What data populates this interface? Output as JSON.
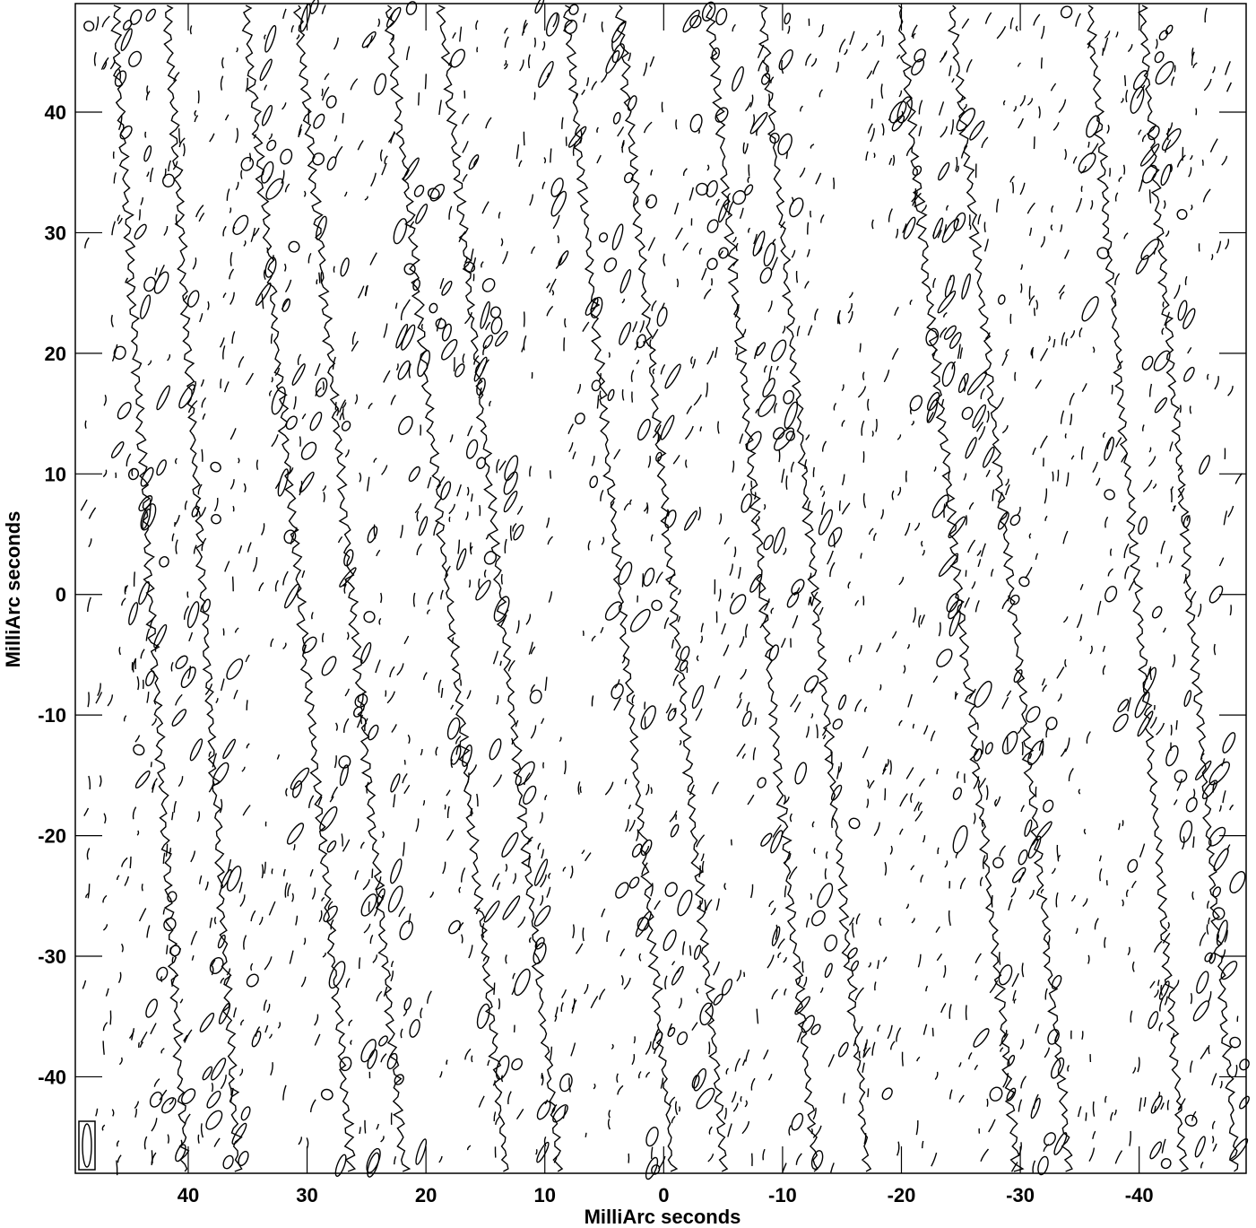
{
  "chart_data": {
    "type": "contour",
    "title": "",
    "xlabel": "MilliArc seconds",
    "ylabel": "MilliArc seconds",
    "xlim": [
      49.5,
      -49
    ],
    "ylim": [
      -48,
      49
    ],
    "x_ticks": [
      40,
      30,
      20,
      10,
      0,
      -10,
      -20,
      -30,
      -40
    ],
    "x_tick_labels": [
      "40",
      "30",
      "20",
      "10",
      "0",
      "-10",
      "-20",
      "-30",
      "-40"
    ],
    "y_ticks": [
      40,
      30,
      20,
      10,
      0,
      -10,
      -20,
      -30,
      -40
    ],
    "y_tick_labels": [
      "40",
      "30",
      "20",
      "10",
      "0",
      "-10",
      "-20",
      "-30",
      "-40"
    ],
    "grid": false,
    "legend": "none",
    "colors": {
      "ink": "#000000",
      "background": "#ffffff"
    },
    "features": {
      "diagonal_bands": [
        {
          "x_top": 44,
          "x_bottom": 38
        },
        {
          "x_top": 33,
          "x_bottom": 24
        },
        {
          "x_top": 21,
          "x_bottom": 11
        },
        {
          "x_top": 6,
          "x_bottom": -3
        },
        {
          "x_top": -6,
          "x_bottom": -15
        },
        {
          "x_top": -22,
          "x_bottom": -32
        },
        {
          "x_top": -38,
          "x_bottom": -46
        }
      ],
      "beam_box_corner": "bottom-left"
    }
  }
}
